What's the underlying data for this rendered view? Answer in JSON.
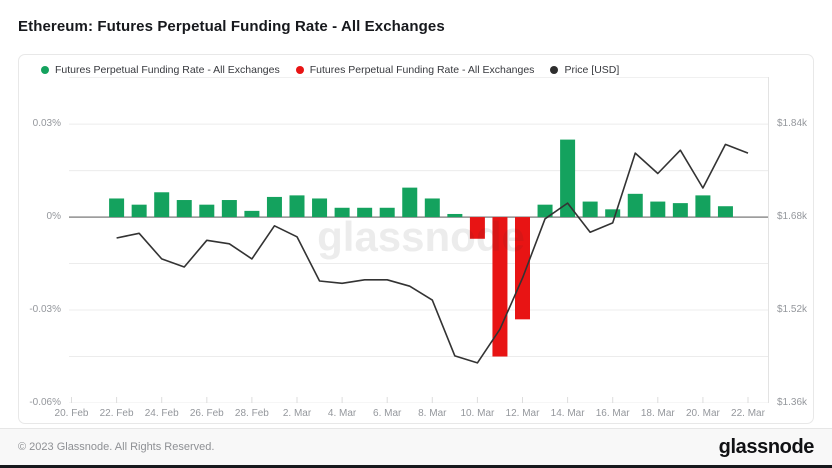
{
  "page": {
    "title": "Ethereum: Futures Perpetual Funding Rate - All Exchanges"
  },
  "legend": [
    {
      "label": "Futures Perpetual Funding Rate - All Exchanges",
      "color": "#14a25e"
    },
    {
      "label": "Futures Perpetual Funding Rate - All Exchanges",
      "color": "#e81414"
    },
    {
      "label": "Price [USD]",
      "color": "#2e2e2e"
    }
  ],
  "watermark": "glassnode",
  "footer": {
    "copyright": "© 2023 Glassnode. All Rights Reserved.",
    "brand": "glassnode"
  },
  "chart_data": {
    "type": "bar",
    "title": "Ethereum: Futures Perpetual Funding Rate - All Exchanges",
    "categories": [
      "20. Feb",
      "21. Feb",
      "22. Feb",
      "23. Feb",
      "24. Feb",
      "25. Feb",
      "26. Feb",
      "27. Feb",
      "28. Feb",
      "1. Mar",
      "2. Mar",
      "3. Mar",
      "4. Mar",
      "5. Mar",
      "6. Mar",
      "7. Mar",
      "8. Mar",
      "9. Mar",
      "10. Mar",
      "11. Mar",
      "12. Mar",
      "13. Mar",
      "14. Mar",
      "15. Mar",
      "16. Mar",
      "17. Mar",
      "18. Mar",
      "19. Mar",
      "20. Mar",
      "21. Mar",
      "22. Mar"
    ],
    "x_tick_labels": [
      "20. Feb",
      "22. Feb",
      "24. Feb",
      "26. Feb",
      "28. Feb",
      "2. Mar",
      "4. Mar",
      "6. Mar",
      "8. Mar",
      "10. Mar",
      "12. Mar",
      "14. Mar",
      "16. Mar",
      "18. Mar",
      "20. Mar",
      "22. Mar"
    ],
    "series": [
      {
        "name": "Futures Perpetual Funding Rate - All Exchanges",
        "type": "bar",
        "unit": "%",
        "values": [
          0,
          0,
          0.006,
          0.004,
          0.008,
          0.0055,
          0.004,
          0.0055,
          0.002,
          0.0065,
          0.007,
          0.006,
          0.003,
          0.003,
          0.003,
          0.0095,
          0.006,
          0.001,
          -0.007,
          -0.045,
          -0.033,
          0.004,
          0.025,
          0.005,
          0.0025,
          0.0075,
          0.005,
          0.0045,
          0.007,
          0.0035,
          0
        ]
      },
      {
        "name": "Price [USD]",
        "type": "line",
        "unit": "USD thousands",
        "values": [
          null,
          null,
          1.644,
          1.652,
          1.608,
          1.594,
          1.64,
          1.634,
          1.608,
          1.665,
          1.646,
          1.57,
          1.566,
          1.572,
          1.572,
          1.561,
          1.537,
          1.441,
          1.429,
          1.487,
          1.575,
          1.677,
          1.704,
          1.654,
          1.67,
          1.79,
          1.755,
          1.795,
          1.73,
          1.805,
          1.79
        ]
      }
    ],
    "y_left": {
      "range": [
        -0.06,
        0.0452
      ],
      "gridlines": [
        0.03,
        0.015,
        0,
        -0.015,
        -0.03,
        -0.045,
        -0.06
      ],
      "ticks": [
        {
          "label": "0.03%",
          "value": 0.03
        },
        {
          "label": "0%",
          "value": 0
        },
        {
          "label": "-0.03%",
          "value": -0.03
        },
        {
          "label": "-0.06%",
          "value": -0.06
        }
      ]
    },
    "y_right": {
      "range": [
        1.36,
        1.921
      ],
      "ticks": [
        {
          "label": "$1.84k",
          "value": 1.84
        },
        {
          "label": "$1.68k",
          "value": 1.68
        },
        {
          "label": "$1.52k",
          "value": 1.52
        },
        {
          "label": "$1.36k",
          "value": 1.36
        }
      ]
    },
    "colors": {
      "positive": "#14a25e",
      "negative": "#e81414",
      "line": "#333333",
      "grid": "#ececec",
      "zero_line": "#8f8f8f",
      "plot_border": "#e3e3e3"
    },
    "legend_position": "top-left",
    "grid": true
  }
}
